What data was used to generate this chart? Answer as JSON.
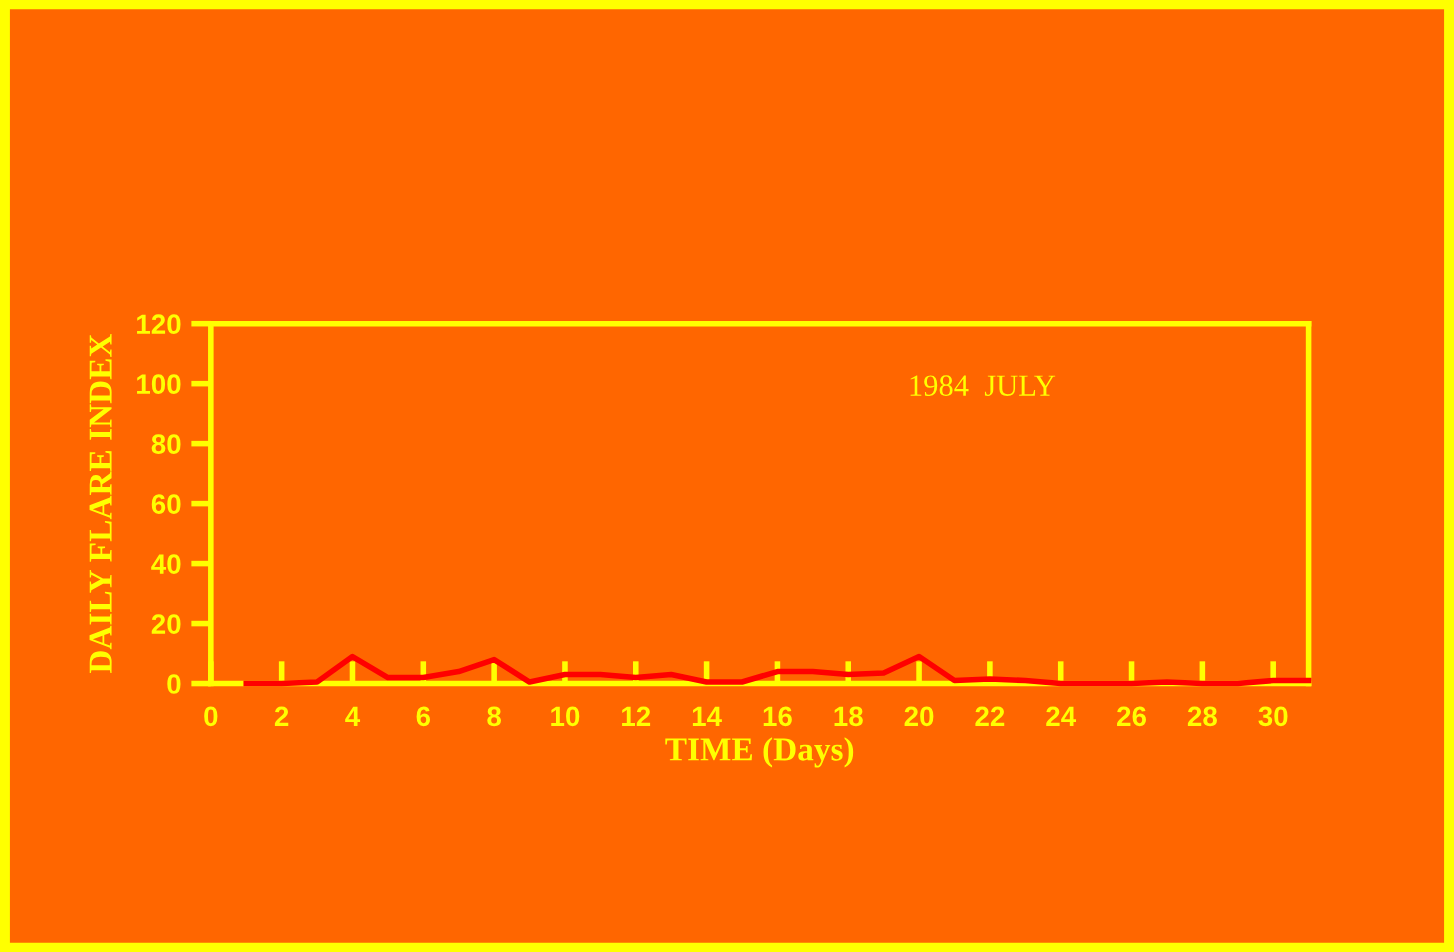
{
  "chart_data": {
    "type": "line",
    "xlabel": "TIME (Days)",
    "ylabel": "DAILY FLARE INDEX",
    "annotations": [
      "1984  JULY"
    ],
    "x": [
      1,
      2,
      3,
      4,
      5,
      6,
      7,
      8,
      9,
      10,
      11,
      12,
      13,
      14,
      15,
      16,
      17,
      18,
      19,
      20,
      21,
      22,
      23,
      24,
      25,
      26,
      27,
      28,
      29,
      30,
      31
    ],
    "series": [
      {
        "color": "#ff0000",
        "values": [
          0,
          0,
          0.5,
          9,
          2,
          2,
          4,
          8,
          0.5,
          3,
          3,
          2,
          3,
          0.5,
          0.5,
          4,
          4,
          3,
          3.5,
          9,
          1,
          1.5,
          1,
          0,
          0,
          0,
          0.5,
          0,
          0,
          1,
          1
        ]
      }
    ],
    "xlim": [
      0,
      31
    ],
    "ylim": [
      0,
      120
    ],
    "xticks": [
      0,
      2,
      4,
      6,
      8,
      10,
      12,
      14,
      16,
      18,
      20,
      22,
      24,
      26,
      28,
      30
    ],
    "yticks": [
      0,
      20,
      40,
      60,
      80,
      100,
      120
    ],
    "grid": false,
    "legend": false,
    "marker": "none",
    "line_style": "solid"
  }
}
